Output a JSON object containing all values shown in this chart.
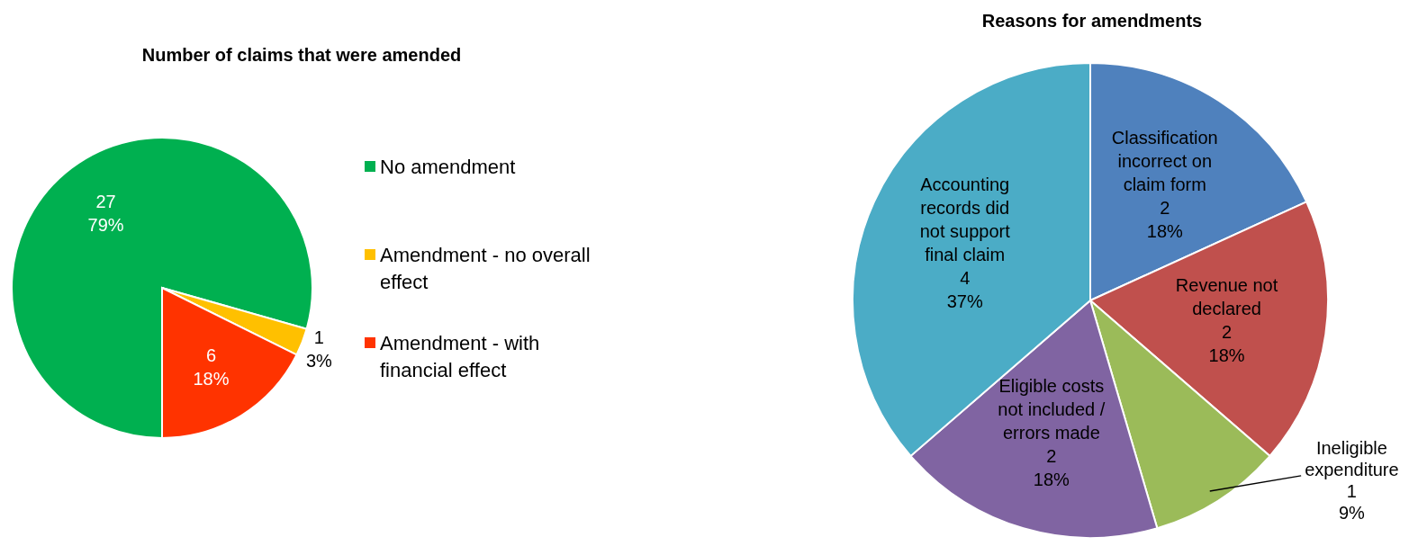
{
  "chart_data": [
    {
      "type": "pie",
      "title": "Number of claims that were amended",
      "categories": [
        "No amendment",
        "Amendment - no overall effect",
        "Amendment - with financial effect"
      ],
      "values": [
        27,
        1,
        6
      ],
      "colors": [
        "#00b050",
        "#ffc000",
        "#ff3300"
      ],
      "value_labels": [
        "27\n79%",
        "1\n3%",
        "6\n18%"
      ],
      "legend": "right"
    },
    {
      "type": "pie",
      "title": "Reasons for amendments",
      "categories": [
        "Classification incorrect on claim form",
        "Revenue not declared",
        "Ineligible expenditure",
        "Eligible costs not included / errors made",
        "Accounting records did not support final claim"
      ],
      "values": [
        2,
        2,
        1,
        2,
        4
      ],
      "colors": [
        "#4f81bd",
        "#c0504d",
        "#9bbb59",
        "#8064a2",
        "#4bacc6"
      ],
      "value_labels": [
        "2\n18%",
        "2\n18%",
        "1\n9%",
        "2\n18%",
        "4\n37%"
      ],
      "legend": false
    }
  ]
}
